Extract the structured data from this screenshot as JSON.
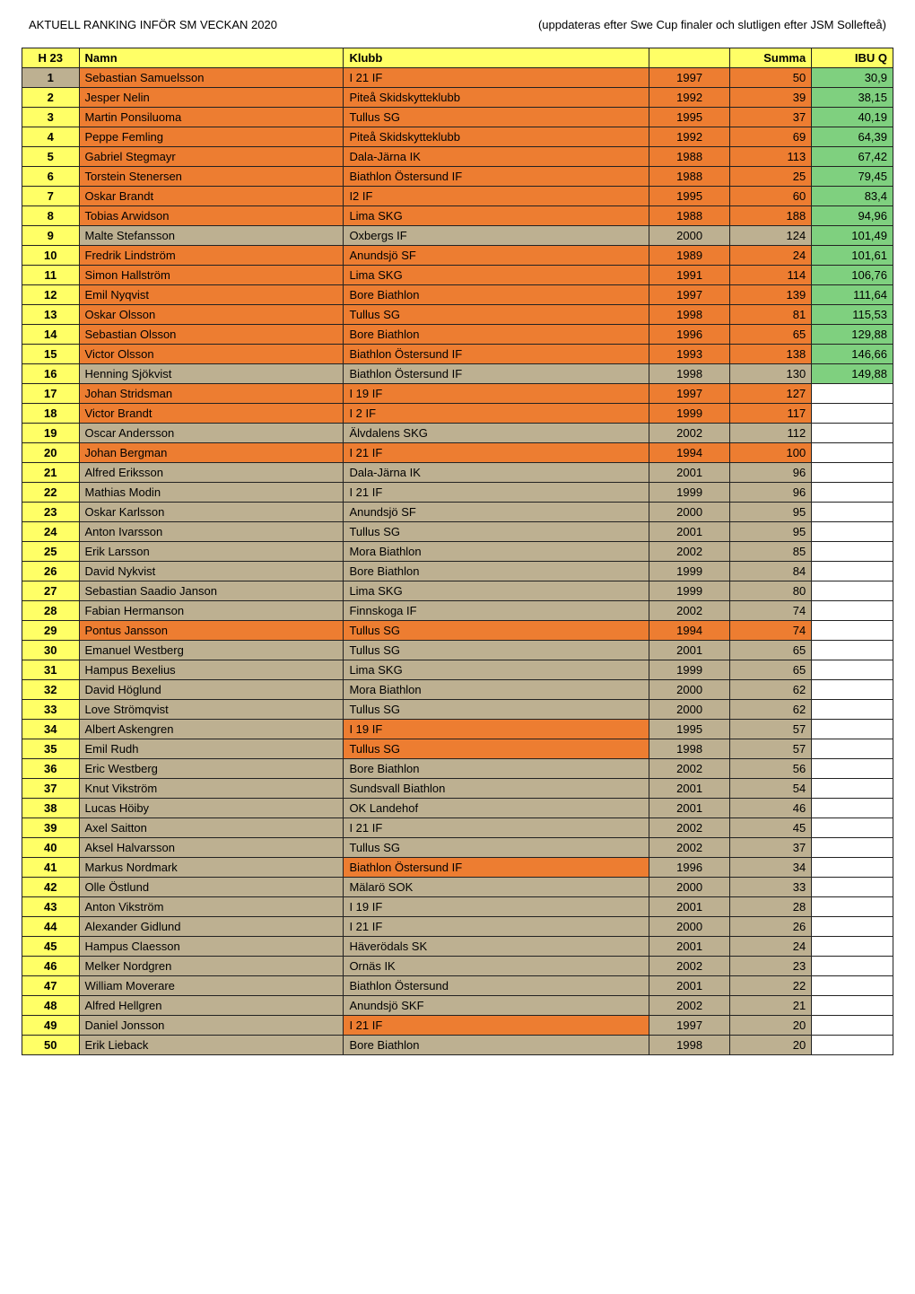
{
  "header": {
    "left": "AKTUELL RANKING INFÖR SM VECKAN 2020",
    "right": "(uppdateras efter Swe Cup finaler och slutligen efter JSM Sollefteå)"
  },
  "table": {
    "columns": [
      "H 23",
      "Namn",
      "Klubb",
      "",
      "Summa",
      "IBU Q"
    ],
    "header_bg": "#ffff66",
    "col_classes": [
      "col-h23",
      "col-namn",
      "col-klubb",
      "col-year",
      "col-summa",
      "col-ibuq"
    ],
    "colors": {
      "orange": "#ed7d31",
      "yellow": "#ffff66",
      "tan": "#bdb091",
      "empty": "#ffffff",
      "ibu_green": "#7fd07f"
    },
    "rows": [
      {
        "rank": "1",
        "namn": "Sebastian Samuelsson",
        "klubb": "I 21 IF",
        "year": "1997",
        "summa": "50",
        "ibuq": "30,9",
        "c": [
          "tan",
          "orange",
          "orange",
          "orange",
          "orange",
          "ibu_green"
        ]
      },
      {
        "rank": "2",
        "namn": "Jesper Nelin",
        "klubb": "Piteå Skidskytteklubb",
        "year": "1992",
        "summa": "39",
        "ibuq": "38,15",
        "c": [
          "yellow",
          "orange",
          "orange",
          "orange",
          "orange",
          "ibu_green"
        ]
      },
      {
        "rank": "3",
        "namn": "Martin Ponsiluoma",
        "klubb": "Tullus SG",
        "year": "1995",
        "summa": "37",
        "ibuq": "40,19",
        "c": [
          "yellow",
          "orange",
          "orange",
          "orange",
          "orange",
          "ibu_green"
        ]
      },
      {
        "rank": "4",
        "namn": "Peppe Femling",
        "klubb": "Piteå Skidskytteklubb",
        "year": "1992",
        "summa": "69",
        "ibuq": "64,39",
        "c": [
          "yellow",
          "orange",
          "orange",
          "orange",
          "orange",
          "ibu_green"
        ]
      },
      {
        "rank": "5",
        "namn": "Gabriel Stegmayr",
        "klubb": "Dala-Järna IK",
        "year": "1988",
        "summa": "113",
        "ibuq": "67,42",
        "c": [
          "yellow",
          "orange",
          "orange",
          "orange",
          "orange",
          "ibu_green"
        ]
      },
      {
        "rank": "6",
        "namn": "Torstein Stenersen",
        "klubb": "Biathlon Östersund IF",
        "year": "1988",
        "summa": "25",
        "ibuq": "79,45",
        "c": [
          "yellow",
          "orange",
          "orange",
          "orange",
          "orange",
          "ibu_green"
        ]
      },
      {
        "rank": "7",
        "namn": "Oskar Brandt",
        "klubb": "I2 IF",
        "year": "1995",
        "summa": "60",
        "ibuq": "83,4",
        "c": [
          "yellow",
          "orange",
          "orange",
          "orange",
          "orange",
          "ibu_green"
        ]
      },
      {
        "rank": "8",
        "namn": "Tobias Arwidson",
        "klubb": "Lima SKG",
        "year": "1988",
        "summa": "188",
        "ibuq": "94,96",
        "c": [
          "yellow",
          "orange",
          "orange",
          "orange",
          "orange",
          "ibu_green"
        ]
      },
      {
        "rank": "9",
        "namn": "Malte Stefansson",
        "klubb": "Oxbergs IF",
        "year": "2000",
        "summa": "124",
        "ibuq": "101,49",
        "c": [
          "yellow",
          "tan",
          "tan",
          "tan",
          "tan",
          "ibu_green"
        ]
      },
      {
        "rank": "10",
        "namn": "Fredrik Lindström",
        "klubb": "Anundsjö SF",
        "year": "1989",
        "summa": "24",
        "ibuq": "101,61",
        "c": [
          "yellow",
          "orange",
          "orange",
          "orange",
          "orange",
          "ibu_green"
        ]
      },
      {
        "rank": "11",
        "namn": "Simon Hallström",
        "klubb": "Lima SKG",
        "year": "1991",
        "summa": "114",
        "ibuq": "106,76",
        "c": [
          "yellow",
          "orange",
          "orange",
          "orange",
          "orange",
          "ibu_green"
        ]
      },
      {
        "rank": "12",
        "namn": "Emil Nyqvist",
        "klubb": "Bore Biathlon",
        "year": "1997",
        "summa": "139",
        "ibuq": "111,64",
        "c": [
          "yellow",
          "orange",
          "orange",
          "orange",
          "orange",
          "ibu_green"
        ]
      },
      {
        "rank": "13",
        "namn": "Oskar Olsson",
        "klubb": "Tullus SG",
        "year": "1998",
        "summa": "81",
        "ibuq": "115,53",
        "c": [
          "yellow",
          "orange",
          "orange",
          "orange",
          "orange",
          "ibu_green"
        ]
      },
      {
        "rank": "14",
        "namn": "Sebastian Olsson",
        "klubb": "Bore Biathlon",
        "year": "1996",
        "summa": "65",
        "ibuq": "129,88",
        "c": [
          "yellow",
          "orange",
          "orange",
          "orange",
          "orange",
          "ibu_green"
        ]
      },
      {
        "rank": "15",
        "namn": "Victor Olsson",
        "klubb": "Biathlon Östersund IF",
        "year": "1993",
        "summa": "138",
        "ibuq": "146,66",
        "c": [
          "yellow",
          "orange",
          "orange",
          "orange",
          "orange",
          "ibu_green"
        ]
      },
      {
        "rank": "16",
        "namn": "Henning Sjökvist",
        "klubb": "Biathlon Östersund IF",
        "year": "1998",
        "summa": "130",
        "ibuq": "149,88",
        "c": [
          "yellow",
          "tan",
          "tan",
          "tan",
          "tan",
          "ibu_green"
        ]
      },
      {
        "rank": "17",
        "namn": "Johan Stridsman",
        "klubb": "I 19 IF",
        "year": "1997",
        "summa": "127",
        "ibuq": "",
        "c": [
          "yellow",
          "orange",
          "orange",
          "orange",
          "orange",
          "empty"
        ]
      },
      {
        "rank": "18",
        "namn": "Victor Brandt",
        "klubb": "I 2 IF",
        "year": "1999",
        "summa": "117",
        "ibuq": "",
        "c": [
          "yellow",
          "orange",
          "orange",
          "orange",
          "orange",
          "empty"
        ]
      },
      {
        "rank": "19",
        "namn": "Oscar Andersson",
        "klubb": "Älvdalens SKG",
        "year": "2002",
        "summa": "112",
        "ibuq": "",
        "c": [
          "yellow",
          "tan",
          "tan",
          "tan",
          "tan",
          "empty"
        ]
      },
      {
        "rank": "20",
        "namn": "Johan Bergman",
        "klubb": "I 21 IF",
        "year": "1994",
        "summa": "100",
        "ibuq": "",
        "c": [
          "yellow",
          "orange",
          "orange",
          "orange",
          "orange",
          "empty"
        ]
      },
      {
        "rank": "21",
        "namn": "Alfred Eriksson",
        "klubb": "Dala-Järna IK",
        "year": "2001",
        "summa": "96",
        "ibuq": "",
        "c": [
          "yellow",
          "tan",
          "tan",
          "tan",
          "tan",
          "empty"
        ]
      },
      {
        "rank": "22",
        "namn": "Mathias Modin",
        "klubb": "I 21 IF",
        "year": "1999",
        "summa": "96",
        "ibuq": "",
        "c": [
          "yellow",
          "tan",
          "tan",
          "tan",
          "tan",
          "empty"
        ]
      },
      {
        "rank": "23",
        "namn": "Oskar Karlsson",
        "klubb": "Anundsjö SF",
        "year": "2000",
        "summa": "95",
        "ibuq": "",
        "c": [
          "yellow",
          "tan",
          "tan",
          "tan",
          "tan",
          "empty"
        ]
      },
      {
        "rank": "24",
        "namn": "Anton Ivarsson",
        "klubb": "Tullus SG",
        "year": "2001",
        "summa": "95",
        "ibuq": "",
        "c": [
          "yellow",
          "tan",
          "tan",
          "tan",
          "tan",
          "empty"
        ]
      },
      {
        "rank": "25",
        "namn": "Erik Larsson",
        "klubb": "Mora Biathlon",
        "year": "2002",
        "summa": "85",
        "ibuq": "",
        "c": [
          "yellow",
          "tan",
          "tan",
          "tan",
          "tan",
          "empty"
        ]
      },
      {
        "rank": "26",
        "namn": "David Nykvist",
        "klubb": "Bore Biathlon",
        "year": "1999",
        "summa": "84",
        "ibuq": "",
        "c": [
          "yellow",
          "tan",
          "tan",
          "tan",
          "tan",
          "empty"
        ]
      },
      {
        "rank": "27",
        "namn": "Sebastian Saadio Janson",
        "klubb": "Lima SKG",
        "year": "1999",
        "summa": "80",
        "ibuq": "",
        "c": [
          "yellow",
          "tan",
          "tan",
          "tan",
          "tan",
          "empty"
        ]
      },
      {
        "rank": "28",
        "namn": "Fabian Hermanson",
        "klubb": "Finnskoga IF",
        "year": "2002",
        "summa": "74",
        "ibuq": "",
        "c": [
          "yellow",
          "tan",
          "tan",
          "tan",
          "tan",
          "empty"
        ]
      },
      {
        "rank": "29",
        "namn": "Pontus Jansson",
        "klubb": "Tullus SG",
        "year": "1994",
        "summa": "74",
        "ibuq": "",
        "c": [
          "yellow",
          "orange",
          "orange",
          "orange",
          "orange",
          "empty"
        ]
      },
      {
        "rank": "30",
        "namn": "Emanuel Westberg",
        "klubb": "Tullus SG",
        "year": "2001",
        "summa": "65",
        "ibuq": "",
        "c": [
          "yellow",
          "tan",
          "tan",
          "tan",
          "tan",
          "empty"
        ]
      },
      {
        "rank": "31",
        "namn": "Hampus Bexelius",
        "klubb": "Lima SKG",
        "year": "1999",
        "summa": "65",
        "ibuq": "",
        "c": [
          "yellow",
          "tan",
          "tan",
          "tan",
          "tan",
          "empty"
        ]
      },
      {
        "rank": "32",
        "namn": "David Höglund",
        "klubb": "Mora Biathlon",
        "year": "2000",
        "summa": "62",
        "ibuq": "",
        "c": [
          "yellow",
          "tan",
          "tan",
          "tan",
          "tan",
          "empty"
        ]
      },
      {
        "rank": "33",
        "namn": "Love Strömqvist",
        "klubb": "Tullus SG",
        "year": "2000",
        "summa": "62",
        "ibuq": "",
        "c": [
          "yellow",
          "tan",
          "tan",
          "tan",
          "tan",
          "empty"
        ]
      },
      {
        "rank": "34",
        "namn": "Albert Askengren",
        "klubb": "I 19 IF",
        "year": "1995",
        "summa": "57",
        "ibuq": "",
        "c": [
          "yellow",
          "tan",
          "orange",
          "tan",
          "tan",
          "empty"
        ]
      },
      {
        "rank": "35",
        "namn": "Emil Rudh",
        "klubb": "Tullus SG",
        "year": "1998",
        "summa": "57",
        "ibuq": "",
        "c": [
          "yellow",
          "tan",
          "orange",
          "tan",
          "tan",
          "empty"
        ]
      },
      {
        "rank": "36",
        "namn": "Eric Westberg",
        "klubb": "Bore Biathlon",
        "year": "2002",
        "summa": "56",
        "ibuq": "",
        "c": [
          "yellow",
          "tan",
          "tan",
          "tan",
          "tan",
          "empty"
        ]
      },
      {
        "rank": "37",
        "namn": "Knut Vikström",
        "klubb": "Sundsvall Biathlon",
        "year": "2001",
        "summa": "54",
        "ibuq": "",
        "c": [
          "yellow",
          "tan",
          "tan",
          "tan",
          "tan",
          "empty"
        ]
      },
      {
        "rank": "38",
        "namn": "Lucas Höiby",
        "klubb": "OK Landehof",
        "year": "2001",
        "summa": "46",
        "ibuq": "",
        "c": [
          "yellow",
          "tan",
          "tan",
          "tan",
          "tan",
          "empty"
        ]
      },
      {
        "rank": "39",
        "namn": "Axel Saitton",
        "klubb": "I 21 IF",
        "year": "2002",
        "summa": "45",
        "ibuq": "",
        "c": [
          "yellow",
          "tan",
          "tan",
          "tan",
          "tan",
          "empty"
        ]
      },
      {
        "rank": "40",
        "namn": "Aksel Halvarsson",
        "klubb": "Tullus SG",
        "year": "2002",
        "summa": "37",
        "ibuq": "",
        "c": [
          "yellow",
          "tan",
          "tan",
          "tan",
          "tan",
          "empty"
        ]
      },
      {
        "rank": "41",
        "namn": "Markus Nordmark",
        "klubb": "Biathlon Östersund IF",
        "year": "1996",
        "summa": "34",
        "ibuq": "",
        "c": [
          "yellow",
          "tan",
          "orange",
          "tan",
          "tan",
          "empty"
        ]
      },
      {
        "rank": "42",
        "namn": "Olle Östlund",
        "klubb": "Mälarö SOK",
        "year": "2000",
        "summa": "33",
        "ibuq": "",
        "c": [
          "yellow",
          "tan",
          "tan",
          "tan",
          "tan",
          "empty"
        ]
      },
      {
        "rank": "43",
        "namn": "Anton Vikström",
        "klubb": "I 19 IF",
        "year": "2001",
        "summa": "28",
        "ibuq": "",
        "c": [
          "yellow",
          "tan",
          "tan",
          "tan",
          "tan",
          "empty"
        ]
      },
      {
        "rank": "44",
        "namn": "Alexander Gidlund",
        "klubb": "I 21 IF",
        "year": "2000",
        "summa": "26",
        "ibuq": "",
        "c": [
          "yellow",
          "tan",
          "tan",
          "tan",
          "tan",
          "empty"
        ]
      },
      {
        "rank": "45",
        "namn": "Hampus Claesson",
        "klubb": "Häverödals SK",
        "year": "2001",
        "summa": "24",
        "ibuq": "",
        "c": [
          "yellow",
          "tan",
          "tan",
          "tan",
          "tan",
          "empty"
        ]
      },
      {
        "rank": "46",
        "namn": "Melker Nordgren",
        "klubb": "Ornäs IK",
        "year": "2002",
        "summa": "23",
        "ibuq": "",
        "c": [
          "yellow",
          "tan",
          "tan",
          "tan",
          "tan",
          "empty"
        ]
      },
      {
        "rank": "47",
        "namn": "William Moverare",
        "klubb": "Biathlon Östersund",
        "year": "2001",
        "summa": "22",
        "ibuq": "",
        "c": [
          "yellow",
          "tan",
          "tan",
          "tan",
          "tan",
          "empty"
        ]
      },
      {
        "rank": "48",
        "namn": "Alfred Hellgren",
        "klubb": "Anundsjö SKF",
        "year": "2002",
        "summa": "21",
        "ibuq": "",
        "c": [
          "yellow",
          "tan",
          "tan",
          "tan",
          "tan",
          "empty"
        ]
      },
      {
        "rank": "49",
        "namn": "Daniel Jonsson",
        "klubb": "I 21 IF",
        "year": "1997",
        "summa": "20",
        "ibuq": "",
        "c": [
          "yellow",
          "tan",
          "orange",
          "tan",
          "tan",
          "empty"
        ]
      },
      {
        "rank": "50",
        "namn": "Erik Lieback",
        "klubb": "Bore Biathlon",
        "year": "1998",
        "summa": "20",
        "ibuq": "",
        "c": [
          "yellow",
          "tan",
          "tan",
          "tan",
          "tan",
          "empty"
        ]
      }
    ]
  }
}
